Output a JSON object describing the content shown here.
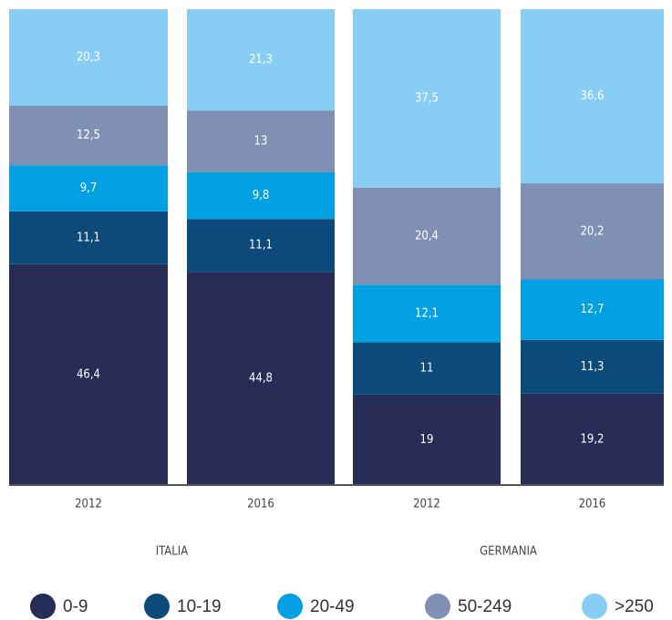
{
  "chart_data": {
    "type": "stacked-bar",
    "categories": [
      "2012",
      "2016",
      "2012",
      "2016"
    ],
    "groups": [
      "ITALIA",
      "GERMANIA"
    ],
    "ylim": [
      0,
      100
    ],
    "series": [
      {
        "name": "0-9",
        "color": "#262c56",
        "values": [
          46.4,
          44.8,
          19,
          19.2
        ],
        "value_labels": [
          "46,4",
          "44,8",
          "19",
          "19,2"
        ]
      },
      {
        "name": "10-19",
        "color": "#0b4a7b",
        "values": [
          11.1,
          11.1,
          11,
          11.3
        ],
        "value_labels": [
          "11,1",
          "11,1",
          "11",
          "11,3"
        ]
      },
      {
        "name": "20-49",
        "color": "#00a0e3",
        "values": [
          9.7,
          9.8,
          12.1,
          12.7
        ],
        "value_labels": [
          "9,7",
          "9,8",
          "12,1",
          "12,7"
        ]
      },
      {
        "name": "50-249",
        "color": "#8090b4",
        "values": [
          12.5,
          13,
          20.4,
          20.2
        ],
        "value_labels": [
          "12,5",
          "13",
          "20,4",
          "20,2"
        ]
      },
      {
        "name": ">250",
        "color": "#88cdf3",
        "values": [
          20.3,
          21.3,
          37.5,
          36.6
        ],
        "value_labels": [
          "20,3",
          "21,3",
          "37,5",
          "36,6"
        ]
      }
    ]
  }
}
